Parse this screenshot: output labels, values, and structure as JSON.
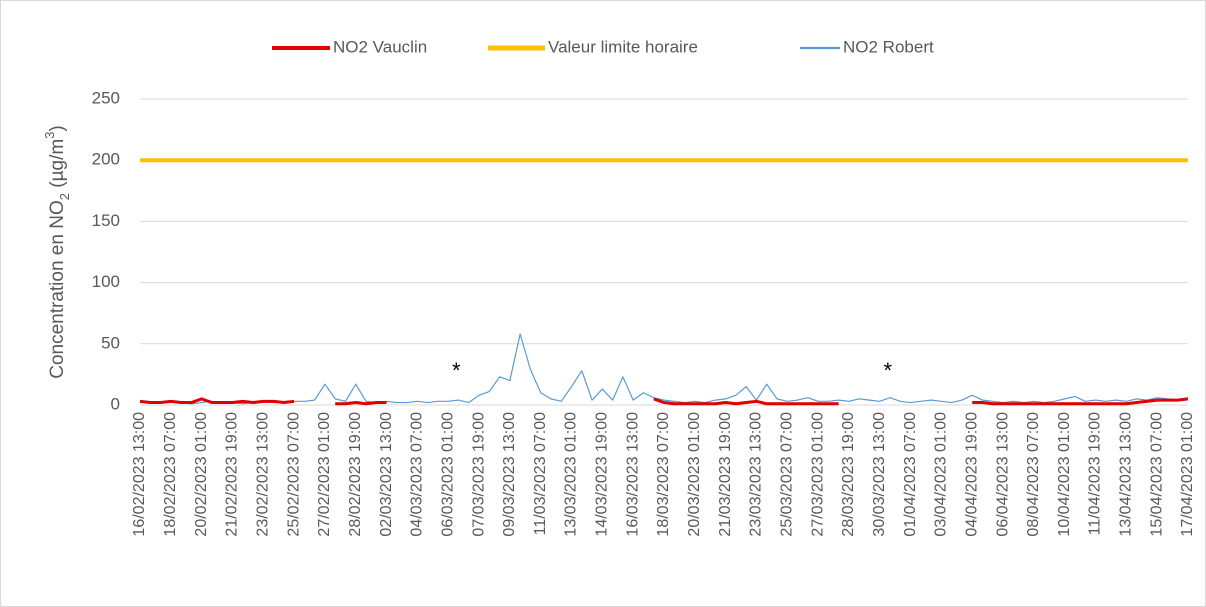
{
  "chart_data": {
    "type": "line",
    "y_label": [
      "Concentration en NO",
      "2",
      " (µg/m",
      "3",
      ")"
    ],
    "categories": [
      "16/02/2023 13:00",
      null,
      null,
      "18/02/2023 07:00",
      null,
      null,
      "20/02/2023 01:00",
      null,
      null,
      "21/02/2023 19:00",
      null,
      null,
      "23/02/2023 13:00",
      null,
      null,
      "25/02/2023 07:00",
      null,
      null,
      "27/02/2023 01:00",
      null,
      null,
      "28/02/2023 19:00",
      null,
      null,
      "02/03/2023 13:00",
      null,
      null,
      "04/03/2023 07:00",
      null,
      null,
      "06/03/2023 01:00",
      null,
      null,
      "07/03/2023 19:00",
      null,
      null,
      "09/03/2023 13:00",
      null,
      null,
      "11/03/2023 07:00",
      null,
      null,
      "13/03/2023 01:00",
      null,
      null,
      "14/03/2023 19:00",
      null,
      null,
      "16/03/2023 13:00",
      null,
      null,
      "18/03/2023 07:00",
      null,
      null,
      "20/03/2023 01:00",
      null,
      null,
      "21/03/2023 19:00",
      null,
      null,
      "23/03/2023 13:00",
      null,
      null,
      "25/03/2023 07:00",
      null,
      null,
      "27/03/2023 01:00",
      null,
      null,
      "28/03/2023 19:00",
      null,
      null,
      "30/03/2023 13:00",
      null,
      null,
      "01/04/2023 07:00",
      null,
      null,
      "03/04/2023 01:00",
      null,
      null,
      "04/04/2023 19:00",
      null,
      null,
      "06/04/2023 13:00",
      null,
      null,
      "08/04/2023 07:00",
      null,
      null,
      "10/04/2023 01:00",
      null,
      null,
      "11/04/2023 19:00",
      null,
      null,
      "13/04/2023 13:00",
      null,
      null,
      "15/04/2023 07:00",
      null,
      null,
      "17/04/2023 01:00"
    ],
    "series": [
      {
        "name": "NO2 Vauclin",
        "color": "#e00000",
        "values": [
          3,
          2,
          2,
          3,
          2,
          2,
          5,
          2,
          2,
          2,
          3,
          2,
          3,
          3,
          2,
          3,
          null,
          null,
          null,
          1,
          1,
          2,
          1,
          2,
          2,
          null,
          null,
          null,
          null,
          null,
          null,
          null,
          null,
          null,
          null,
          null,
          null,
          null,
          null,
          null,
          null,
          null,
          null,
          null,
          null,
          null,
          null,
          null,
          null,
          null,
          5,
          2,
          1,
          1,
          1,
          1,
          1,
          2,
          1,
          2,
          3,
          1,
          1,
          1,
          1,
          1,
          1,
          1,
          1,
          null,
          null,
          null,
          null,
          null,
          null,
          null,
          null,
          null,
          null,
          null,
          null,
          2,
          2,
          1,
          1,
          1,
          1,
          1,
          1,
          1,
          1,
          1,
          1,
          1,
          1,
          1,
          1,
          2,
          3,
          4,
          4,
          4,
          5
        ]
      },
      {
        "name": "Valeur limite horaire",
        "color": "#ffc000",
        "values": [
          200,
          200,
          200,
          200,
          200,
          200,
          200,
          200,
          200,
          200,
          200,
          200,
          200,
          200,
          200,
          200,
          200,
          200,
          200,
          200,
          200,
          200,
          200,
          200,
          200,
          200,
          200,
          200,
          200,
          200,
          200,
          200,
          200,
          200,
          200,
          200,
          200,
          200,
          200,
          200,
          200,
          200,
          200,
          200,
          200,
          200,
          200,
          200,
          200,
          200,
          200,
          200,
          200,
          200,
          200,
          200,
          200,
          200,
          200,
          200,
          200,
          200,
          200,
          200,
          200,
          200,
          200,
          200,
          200,
          200,
          200,
          200,
          200,
          200,
          200,
          200,
          200,
          200,
          200,
          200,
          200,
          200,
          200,
          200,
          200,
          200,
          200,
          200,
          200,
          200,
          200,
          200,
          200,
          200,
          200,
          200,
          200,
          200,
          200,
          200,
          200,
          200,
          200
        ]
      },
      {
        "name": "NO2 Robert",
        "color": "#5b9bd5",
        "values": [
          3,
          2,
          2,
          3,
          2,
          1,
          2,
          3,
          2,
          2,
          1,
          2,
          3,
          2,
          2,
          3,
          3,
          4,
          17,
          5,
          3,
          17,
          3,
          2,
          3,
          2,
          2,
          3,
          2,
          3,
          3,
          4,
          2,
          8,
          11,
          23,
          20,
          58,
          29,
          10,
          5,
          3,
          15,
          28,
          4,
          13,
          4,
          23,
          4,
          10,
          6,
          4,
          3,
          2,
          3,
          2,
          4,
          5,
          8,
          15,
          4,
          17,
          5,
          3,
          4,
          6,
          3,
          3,
          4,
          3,
          5,
          4,
          3,
          6,
          3,
          2,
          3,
          4,
          3,
          2,
          4,
          8,
          4,
          3,
          2,
          3,
          2,
          3,
          2,
          3,
          5,
          7,
          3,
          4,
          3,
          4,
          3,
          5,
          4,
          6,
          5,
          4,
          6
        ]
      }
    ],
    "annotations": [
      {
        "text": "*",
        "at": "06/03/2023 01:00"
      },
      {
        "text": "*",
        "at": "30/03/2023 13:00"
      }
    ],
    "ylim": [
      0,
      250
    ],
    "yticks": [
      0,
      50,
      100,
      150,
      200,
      250
    ],
    "grid": true,
    "legend": "top"
  }
}
